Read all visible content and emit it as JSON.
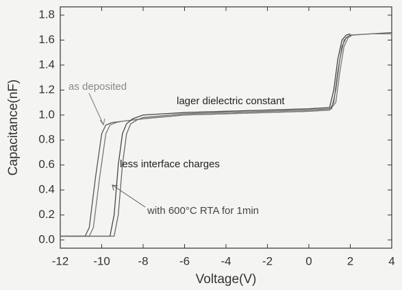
{
  "chart_data": {
    "type": "line",
    "x_label": "Voltage(V)",
    "y_label": "Capacitance(nF)",
    "annotations": [
      "as deposited",
      "lager dielectric constant",
      "less interface charges",
      "with 600°C RTA for 1min"
    ],
    "series": [
      {
        "color": "#555555",
        "x": [
          -12,
          -10.8,
          -10.6,
          -10.3,
          -10.0,
          -9.8,
          -9.5,
          -9,
          -8,
          -6,
          -4,
          -2,
          0,
          1,
          1.2,
          1.4,
          1.6,
          1.8,
          2,
          3,
          4
        ],
        "values": [
          0.03,
          0.03,
          0.1,
          0.5,
          0.85,
          0.92,
          0.94,
          0.95,
          0.97,
          1.0,
          1.01,
          1.02,
          1.03,
          1.04,
          1.1,
          1.35,
          1.55,
          1.62,
          1.64,
          1.65,
          1.66
        ]
      },
      {
        "color": "#777777",
        "x": [
          -12,
          -10.6,
          -10.4,
          -10.1,
          -9.8,
          -9.6,
          -9.3,
          -9,
          -8,
          -6,
          -4,
          -2,
          0,
          1,
          1.3,
          1.5,
          1.7,
          1.9,
          2.1,
          3,
          4
        ],
        "values": [
          0.03,
          0.03,
          0.1,
          0.5,
          0.85,
          0.92,
          0.94,
          0.95,
          0.97,
          1.0,
          1.01,
          1.02,
          1.03,
          1.04,
          1.1,
          1.35,
          1.55,
          1.62,
          1.64,
          1.65,
          1.65
        ]
      },
      {
        "color": "#444444",
        "x": [
          -12,
          -9.6,
          -9.4,
          -9.2,
          -9.0,
          -8.8,
          -8.5,
          -8,
          -6,
          -4,
          -2,
          0,
          1,
          1.2,
          1.4,
          1.6,
          1.8,
          2
        ],
        "values": [
          0.03,
          0.03,
          0.2,
          0.6,
          0.85,
          0.93,
          0.97,
          1.0,
          1.02,
          1.03,
          1.04,
          1.05,
          1.06,
          1.2,
          1.45,
          1.6,
          1.64,
          1.65
        ]
      },
      {
        "color": "#666666",
        "x": [
          -12,
          -9.4,
          -9.2,
          -9.0,
          -8.8,
          -8.6,
          -8.3,
          -8,
          -6,
          -4,
          -2,
          0,
          1.1,
          1.3,
          1.5,
          1.7,
          1.9,
          2.05
        ],
        "values": [
          0.03,
          0.03,
          0.2,
          0.6,
          0.85,
          0.93,
          0.96,
          0.98,
          1.01,
          1.02,
          1.03,
          1.04,
          1.05,
          1.2,
          1.45,
          1.6,
          1.63,
          1.64
        ]
      }
    ],
    "xlim": [
      -12,
      4
    ],
    "xticks": [
      -12,
      -10,
      -8,
      -6,
      -4,
      -2,
      0,
      2,
      4
    ],
    "ylim": [
      -0.066,
      1.866
    ],
    "yticks": [
      {
        "value": 0,
        "label": "0.0"
      },
      0.2,
      0.4,
      0.6,
      0.8,
      {
        "value": 1,
        "label": "1.0"
      },
      1.2,
      1.4,
      1.6,
      1.8
    ]
  }
}
